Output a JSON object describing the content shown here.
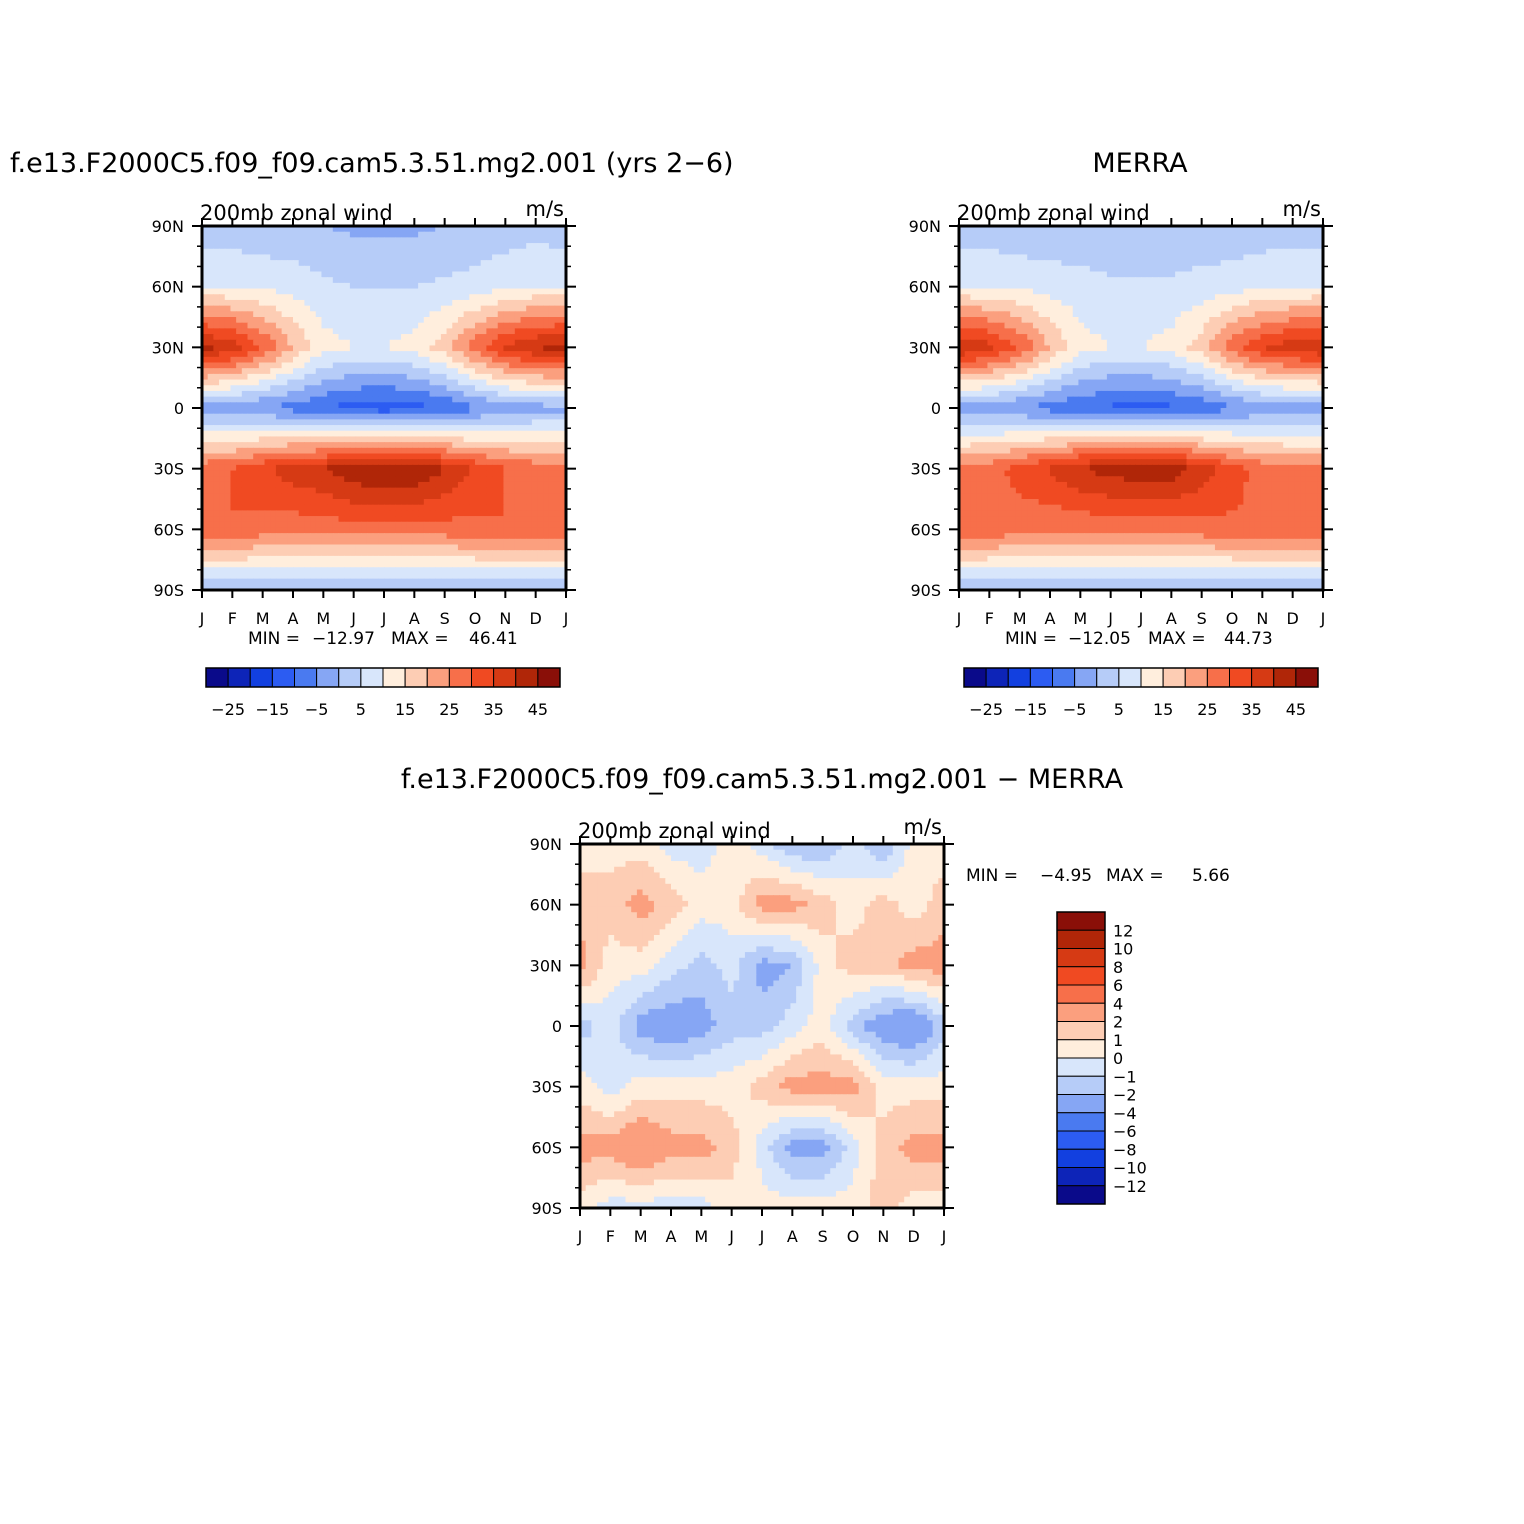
{
  "figure": {
    "panels": [
      {
        "id": "model",
        "title": "f.e13.F2000C5.f09_f09.cam5.3.51.mg2.001 (yrs 2−6)",
        "left_label": "200mb zonal wind",
        "right_label": "m/s",
        "min_label": "MIN =",
        "min_value": "−12.97",
        "max_label": "MAX =",
        "max_value": "46.41"
      },
      {
        "id": "obs",
        "title": "MERRA",
        "left_label": "200mb zonal wind",
        "right_label": "m/s",
        "min_label": "MIN =",
        "min_value": "−12.05",
        "max_label": "MAX =",
        "max_value": "44.73"
      },
      {
        "id": "diff",
        "title": "f.e13.F2000C5.f09_f09.cam5.3.51.mg2.001 − MERRA",
        "left_label": "200mb zonal wind",
        "right_label": "m/s",
        "min_label": "MIN =",
        "min_value": "−4.95",
        "max_label": "MAX =",
        "max_value": "5.66"
      }
    ]
  },
  "chart_data": [
    {
      "type": "heatmap",
      "title": "f.e13.F2000C5.f09_f09.cam5.3.51.mg2.001 (yrs 2−6)",
      "subtitle": "200mb zonal wind",
      "units": "m/s",
      "x": [
        "J",
        "F",
        "M",
        "A",
        "M",
        "J",
        "J",
        "A",
        "S",
        "O",
        "N",
        "D",
        "J"
      ],
      "y": [
        "90N",
        "60N",
        "30N",
        "0",
        "30S",
        "60S",
        "90S"
      ],
      "xlabel": "",
      "ylabel": "",
      "min": -12.97,
      "max": 46.41,
      "levels": [
        -30,
        -25,
        -20,
        -15,
        -10,
        -5,
        0,
        5,
        10,
        15,
        20,
        25,
        30,
        35,
        40,
        45,
        50
      ],
      "colorbar_labels": [
        "−25",
        "−15",
        "−5",
        "5",
        "15",
        "25",
        "35",
        "45"
      ],
      "colors": [
        "#0a0a8a",
        "#0d24b8",
        "#1240e0",
        "#2c5cf2",
        "#4a7af0",
        "#86a6f4",
        "#b6ccf8",
        "#d8e6fb",
        "#ffeedd",
        "#fdcdb4",
        "#fb9f7e",
        "#f76f4a",
        "#f04a22",
        "#d63a14",
        "#b02608",
        "#8a0f08"
      ],
      "values": [
        [
          2,
          2,
          1,
          1,
          0,
          -1,
          -1,
          -1,
          0,
          1,
          2,
          3,
          2
        ],
        [
          10,
          10,
          9,
          8,
          6,
          5,
          5,
          5,
          6,
          7,
          9,
          10,
          10
        ],
        [
          42,
          38,
          30,
          20,
          12,
          10,
          10,
          12,
          18,
          28,
          36,
          40,
          42
        ],
        [
          -2,
          -4,
          -5,
          -7,
          -10,
          -12,
          -13,
          -12,
          -10,
          -6,
          -3,
          -2,
          -2
        ],
        [
          28,
          30,
          34,
          38,
          40,
          44,
          46,
          45,
          40,
          34,
          30,
          28,
          28
        ],
        [
          30,
          30,
          28,
          27,
          27,
          28,
          28,
          28,
          28,
          29,
          30,
          30,
          30
        ],
        [
          0,
          0,
          0,
          0,
          0,
          0,
          0,
          0,
          0,
          0,
          0,
          0,
          0
        ]
      ]
    },
    {
      "type": "heatmap",
      "title": "MERRA",
      "subtitle": "200mb zonal wind",
      "units": "m/s",
      "x": [
        "J",
        "F",
        "M",
        "A",
        "M",
        "J",
        "J",
        "A",
        "S",
        "O",
        "N",
        "D",
        "J"
      ],
      "y": [
        "90N",
        "60N",
        "30N",
        "0",
        "30S",
        "60S",
        "90S"
      ],
      "xlabel": "",
      "ylabel": "",
      "min": -12.05,
      "max": 44.73,
      "levels": [
        -30,
        -25,
        -20,
        -15,
        -10,
        -5,
        0,
        5,
        10,
        15,
        20,
        25,
        30,
        35,
        40,
        45,
        50
      ],
      "colorbar_labels": [
        "−25",
        "−15",
        "−5",
        "5",
        "15",
        "25",
        "35",
        "45"
      ],
      "colors": [
        "#0a0a8a",
        "#0d24b8",
        "#1240e0",
        "#2c5cf2",
        "#4a7af0",
        "#86a6f4",
        "#b6ccf8",
        "#d8e6fb",
        "#ffeedd",
        "#fdcdb4",
        "#fb9f7e",
        "#f76f4a",
        "#f04a22",
        "#d63a14",
        "#b02608",
        "#8a0f08"
      ],
      "values": [
        [
          2,
          2,
          1,
          1,
          1,
          0,
          0,
          0,
          1,
          1,
          2,
          2,
          2
        ],
        [
          10,
          10,
          9,
          8,
          7,
          6,
          6,
          6,
          7,
          8,
          9,
          10,
          10
        ],
        [
          40,
          37,
          30,
          20,
          12,
          10,
          10,
          12,
          18,
          28,
          35,
          38,
          40
        ],
        [
          -3,
          -4,
          -5,
          -7,
          -9,
          -11,
          -12,
          -11,
          -9,
          -6,
          -4,
          -3,
          -3
        ],
        [
          26,
          28,
          32,
          36,
          40,
          42,
          44,
          43,
          38,
          32,
          28,
          26,
          26
        ],
        [
          30,
          29,
          27,
          26,
          26,
          27,
          27,
          27,
          28,
          29,
          30,
          30,
          30
        ],
        [
          0,
          0,
          0,
          0,
          0,
          0,
          0,
          0,
          0,
          0,
          0,
          0,
          0
        ]
      ]
    },
    {
      "type": "heatmap",
      "title": "f.e13.F2000C5.f09_f09.cam5.3.51.mg2.001 − MERRA",
      "subtitle": "200mb zonal wind",
      "units": "m/s",
      "x": [
        "J",
        "F",
        "M",
        "A",
        "M",
        "J",
        "J",
        "A",
        "S",
        "O",
        "N",
        "D",
        "J"
      ],
      "y": [
        "90N",
        "60N",
        "30N",
        "0",
        "30S",
        "60S",
        "90S"
      ],
      "xlabel": "",
      "ylabel": "",
      "min": -4.95,
      "max": 5.66,
      "levels": [
        -14,
        -12,
        -10,
        -8,
        -6,
        -4,
        -2,
        -1,
        0,
        1,
        2,
        4,
        6,
        8,
        10,
        12,
        14
      ],
      "colorbar_labels": [
        "12",
        "10",
        "8",
        "6",
        "4",
        "2",
        "1",
        "0",
        "−1",
        "−2",
        "−4",
        "−6",
        "−8",
        "−10",
        "−12"
      ],
      "colors": [
        "#0a0a8a",
        "#0d24b8",
        "#1240e0",
        "#2c5cf2",
        "#4a7af0",
        "#86a6f4",
        "#b6ccf8",
        "#d8e6fb",
        "#ffeedd",
        "#fdcdb4",
        "#fb9f7e",
        "#f76f4a",
        "#f04a22",
        "#d63a14",
        "#b02608",
        "#8a0f08"
      ],
      "values": [
        [
          0.5,
          0.5,
          0.5,
          -0.5,
          -0.5,
          0.5,
          -0.5,
          -2,
          -2,
          -0.5,
          -2,
          0.5,
          0.5
        ],
        [
          1.5,
          1.5,
          2.5,
          1.5,
          0.5,
          0.5,
          2.5,
          2.5,
          1.5,
          0.5,
          1.5,
          0.5,
          1.5
        ],
        [
          2.5,
          0.5,
          0.5,
          -0.5,
          -1.5,
          -0.5,
          -2.5,
          -2,
          0.5,
          1.5,
          1.5,
          2.5,
          2.5
        ],
        [
          -1.5,
          -0.5,
          -2.5,
          -3,
          -2.5,
          -1.5,
          -1.5,
          -0.5,
          0.5,
          -1.5,
          -3,
          -3.5,
          -1.5
        ],
        [
          0.5,
          -0.5,
          0.5,
          0.5,
          0.5,
          0.5,
          1.5,
          2.5,
          2.5,
          2.5,
          0.5,
          0.5,
          0.5
        ],
        [
          2.5,
          2.5,
          3.5,
          2.5,
          2.5,
          1.5,
          -0.5,
          -2.5,
          -2.5,
          -0.5,
          1.5,
          2.5,
          2.5
        ],
        [
          0.5,
          -0.5,
          -0.5,
          -0.5,
          -0.5,
          0.5,
          0.5,
          0.5,
          0.5,
          0.5,
          1.5,
          0.5,
          0.5
        ]
      ]
    }
  ]
}
